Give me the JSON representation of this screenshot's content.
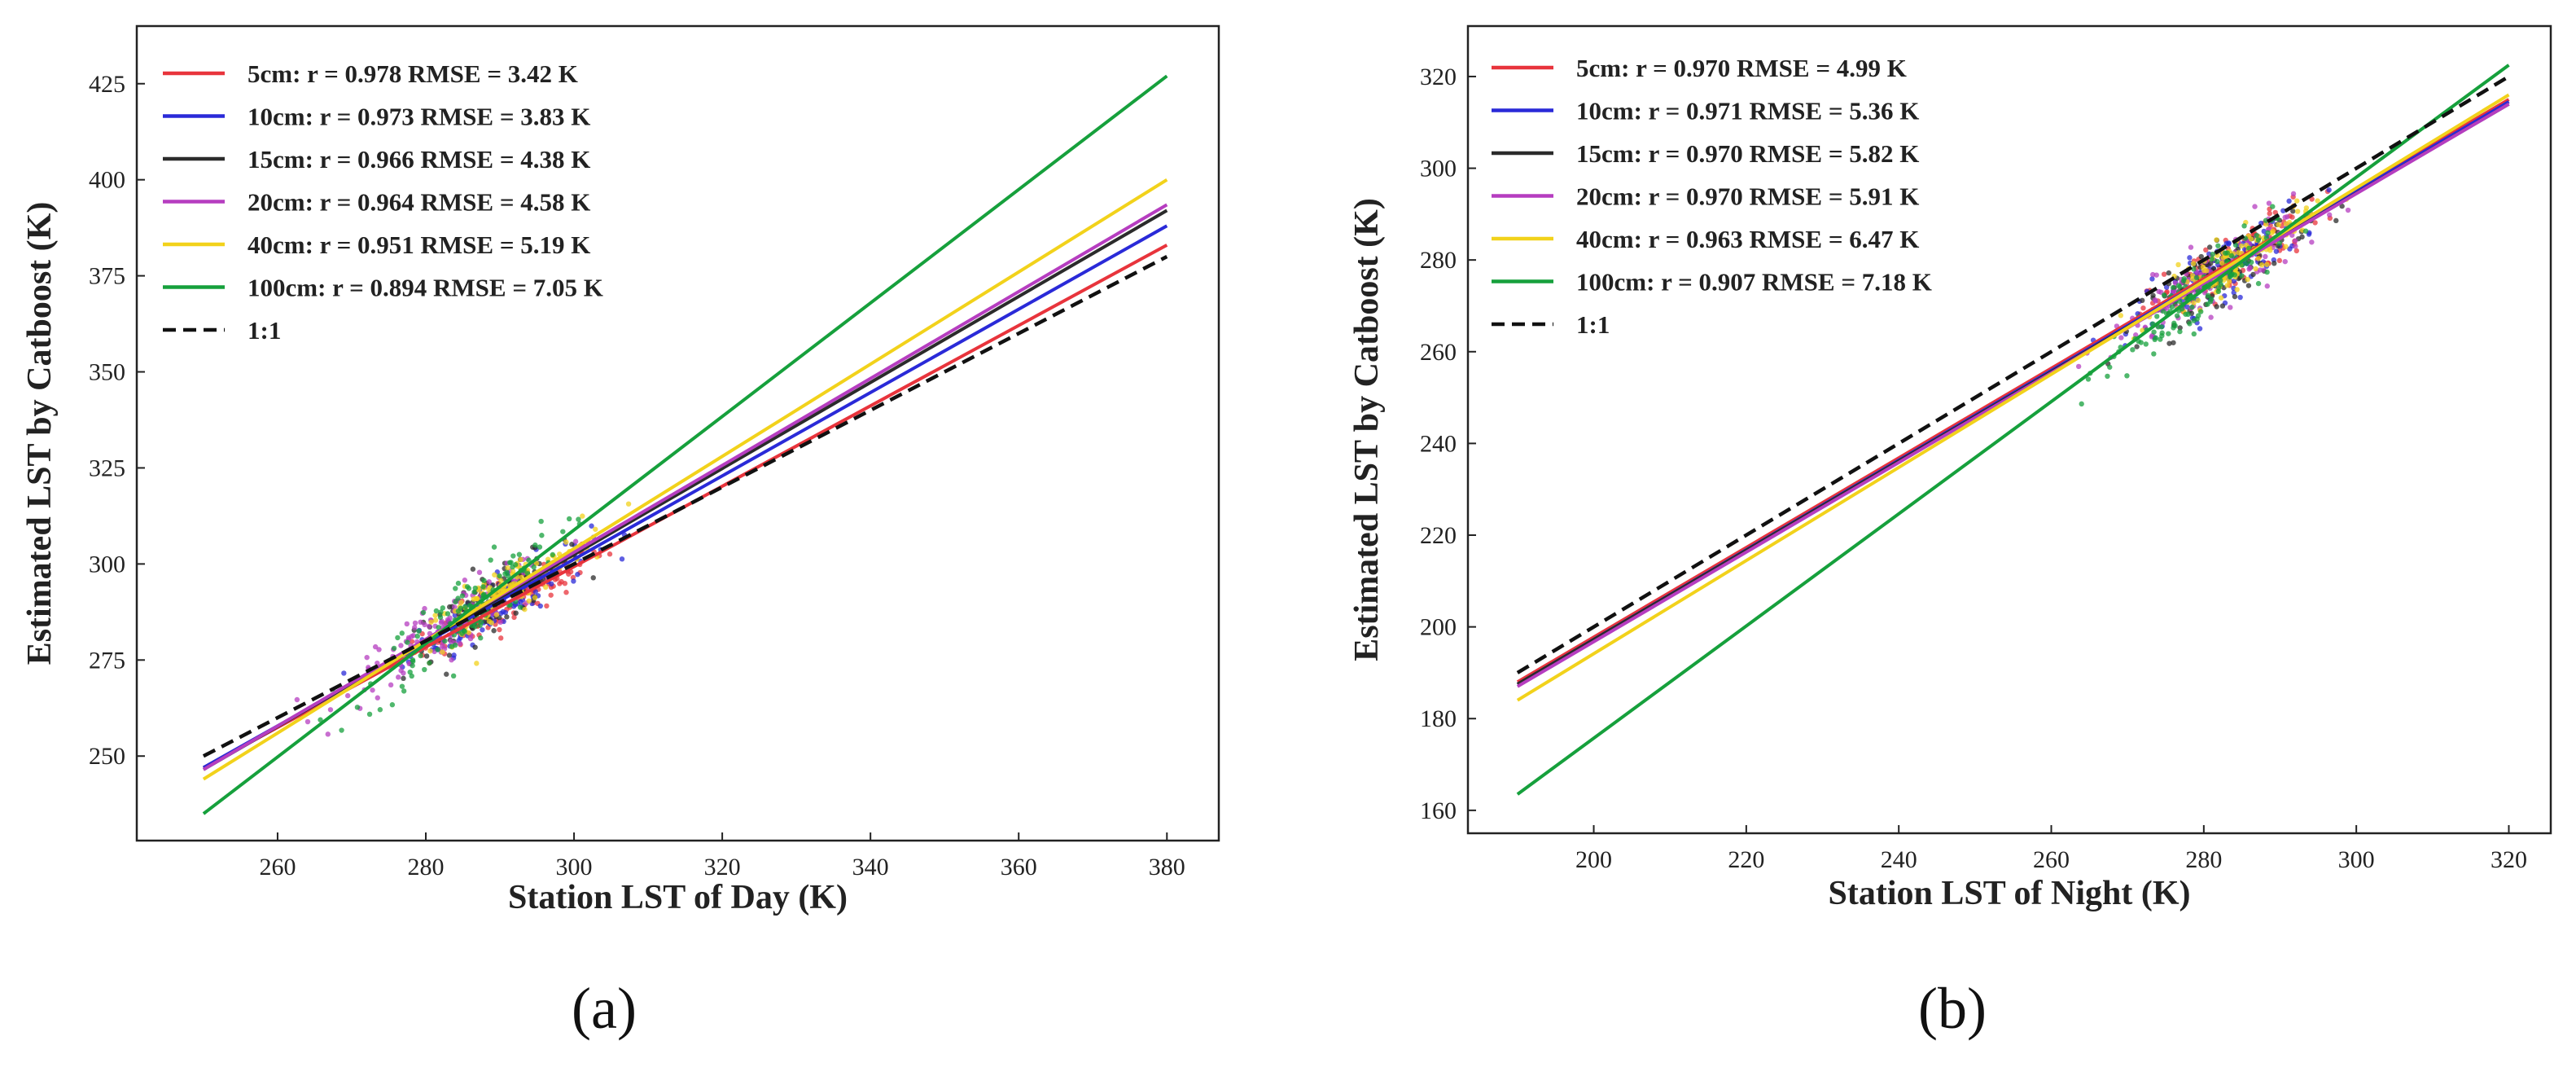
{
  "colors": {
    "5cm": "#e8343c",
    "10cm": "#2a2ad8",
    "15cm": "#2b2b2b",
    "20cm": "#b63dc0",
    "40cm": "#f2d21b",
    "100cm": "#16a03c",
    "identity": "#111111"
  },
  "panel_labels": [
    "(a)",
    "(b)"
  ],
  "chart_data": [
    {
      "type": "scatter",
      "panel": "a",
      "xlabel": "Station LST of Day (K)",
      "ylabel": "Estimated LST by Catboost (K)",
      "xlim": [
        241,
        387
      ],
      "ylim": [
        228,
        440
      ],
      "xticks": [
        260,
        280,
        300,
        320,
        340,
        360,
        380
      ],
      "yticks": [
        250,
        275,
        300,
        325,
        350,
        375,
        400,
        425
      ],
      "legend_position": "top-left",
      "series": [
        {
          "name": "5cm",
          "legend": "5cm:  r = 0.978  RMSE = 3.42 K",
          "fit": {
            "x": [
              250,
              380
            ],
            "y": [
              247.0,
              383.0
            ]
          },
          "cluster": {
            "center": [
              292,
              293
            ],
            "spread": [
              11,
              9
            ]
          }
        },
        {
          "name": "10cm",
          "legend": "10cm:  r = 0.973  RMSE = 3.83 K",
          "fit": {
            "x": [
              250,
              380
            ],
            "y": [
              247.0,
              388.0
            ]
          },
          "cluster": {
            "center": [
              290,
              290
            ],
            "spread": [
              11,
              10
            ]
          }
        },
        {
          "name": "15cm",
          "legend": "15cm:  r = 0.966  RMSE = 4.38 K",
          "fit": {
            "x": [
              250,
              380
            ],
            "y": [
              246.5,
              392.0
            ]
          },
          "cluster": {
            "center": [
              289,
              289
            ],
            "spread": [
              11,
              10
            ]
          }
        },
        {
          "name": "20cm",
          "legend": "20cm:  r = 0.964  RMSE = 4.58 K",
          "fit": {
            "x": [
              250,
              380
            ],
            "y": [
              246.5,
              393.5
            ]
          },
          "cluster": {
            "center": [
              283,
              283
            ],
            "spread": [
              13,
              11
            ]
          }
        },
        {
          "name": "40cm",
          "legend": "40cm:  r = 0.951  RMSE = 5.19 K",
          "fit": {
            "x": [
              250,
              380
            ],
            "y": [
              244.0,
              400.0
            ]
          },
          "cluster": {
            "center": [
              290,
              291
            ],
            "spread": [
              10,
              10
            ]
          }
        },
        {
          "name": "100cm",
          "legend": "100cm:  r = 0.894  RMSE = 7.05 K",
          "fit": {
            "x": [
              250,
              380
            ],
            "y": [
              235.0,
              427.0
            ]
          },
          "cluster": {
            "center": [
              285,
              286
            ],
            "spread": [
              12,
              14
            ]
          }
        },
        {
          "name": "1:1",
          "legend": "1:1",
          "fit": {
            "x": [
              250,
              380
            ],
            "y": [
              250,
              380
            ]
          },
          "dashed": true
        }
      ]
    },
    {
      "type": "scatter",
      "panel": "b",
      "xlabel": "Station LST of Night (K)",
      "ylabel": "Estimated LST by Catboost (K)",
      "xlim": [
        183.5,
        325.5
      ],
      "ylim": [
        155,
        331
      ],
      "xticks": [
        200,
        220,
        240,
        260,
        280,
        300,
        320
      ],
      "yticks": [
        160,
        180,
        200,
        220,
        240,
        260,
        280,
        300,
        320
      ],
      "legend_position": "top-left",
      "series": [
        {
          "name": "5cm",
          "legend": "5cm:  r = 0.970  RMSE = 4.99 K",
          "fit": {
            "x": [
              190,
              320
            ],
            "y": [
              188.0,
              315.0
            ]
          },
          "cluster": {
            "center": [
              284,
              283
            ],
            "spread": [
              10,
              9
            ]
          }
        },
        {
          "name": "10cm",
          "legend": "10cm:  r = 0.971  RMSE = 5.36 K",
          "fit": {
            "x": [
              190,
              320
            ],
            "y": [
              187.5,
              314.5
            ]
          },
          "cluster": {
            "center": [
              282,
              282
            ],
            "spread": [
              10,
              9
            ]
          }
        },
        {
          "name": "15cm",
          "legend": "15cm:  r = 0.970  RMSE = 5.82 K",
          "fit": {
            "x": [
              190,
              320
            ],
            "y": [
              187.5,
              314.0
            ]
          },
          "cluster": {
            "center": [
              283,
              282
            ],
            "spread": [
              10,
              9
            ]
          }
        },
        {
          "name": "20cm",
          "legend": "20cm:  r = 0.970  RMSE = 5.91 K",
          "fit": {
            "x": [
              190,
              320
            ],
            "y": [
              187.0,
              314.0
            ]
          },
          "cluster": {
            "center": [
              281,
              280
            ],
            "spread": [
              12,
              10
            ]
          }
        },
        {
          "name": "40cm",
          "legend": "40cm:  r = 0.963  RMSE = 6.47 K",
          "fit": {
            "x": [
              190,
              320
            ],
            "y": [
              184.0,
              316.0
            ]
          },
          "cluster": {
            "center": [
              284,
              283
            ],
            "spread": [
              9,
              8
            ]
          }
        },
        {
          "name": "100cm",
          "legend": "100cm:  r = 0.907  RMSE = 7.18 K",
          "fit": {
            "x": [
              190,
              320
            ],
            "y": [
              163.5,
              322.5
            ]
          },
          "cluster": {
            "center": [
              278,
              277
            ],
            "spread": [
              10,
              10
            ]
          }
        },
        {
          "name": "1:1",
          "legend": "1:1",
          "fit": {
            "x": [
              190,
              320
            ],
            "y": [
              190,
              320
            ]
          },
          "dashed": true
        }
      ]
    }
  ]
}
